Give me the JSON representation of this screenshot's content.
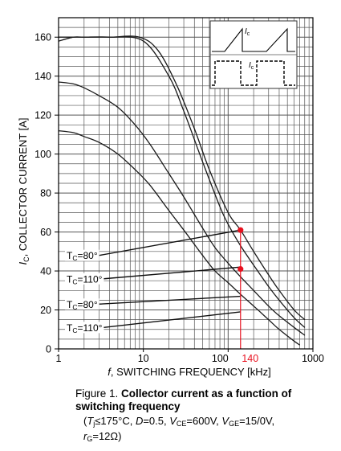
{
  "chart_data": {
    "type": "line",
    "xscale": "log",
    "xlim": [
      1,
      1000
    ],
    "ylim": [
      0,
      170
    ],
    "xticks": [
      1,
      10,
      100,
      1000
    ],
    "xtick_labels": [
      "1",
      "10",
      "100",
      "1000"
    ],
    "yticks": [
      0,
      20,
      40,
      60,
      80,
      100,
      120,
      140,
      160
    ],
    "ytick_labels": [
      "0",
      "20",
      "40",
      "60",
      "80",
      "100",
      "120",
      "140",
      "160"
    ],
    "grid": true,
    "xlabel_var": "f",
    "xlabel": ", SWITCHING FREQUENCY [kHz]",
    "ylabel_var": "I",
    "ylabel_sub": "C",
    "ylabel": ", COLLECTOR CURRENT [A]",
    "series": [
      {
        "x": [
          1,
          1.5,
          2,
          4,
          9,
          15,
          25,
          40,
          60,
          100,
          140,
          200,
          300,
          400,
          600,
          800
        ],
        "y": [
          160,
          160,
          160,
          160,
          160,
          153,
          135,
          113,
          92,
          70,
          61,
          50,
          38,
          30,
          20,
          15
        ]
      },
      {
        "x": [
          1,
          1.5,
          2,
          4,
          10,
          20,
          30,
          50,
          80,
          100,
          140,
          200,
          300,
          400,
          600,
          800
        ],
        "y": [
          158,
          160,
          160,
          160,
          158,
          140,
          122,
          96,
          73,
          64,
          53,
          43,
          32,
          25,
          16,
          11
        ]
      },
      {
        "x": [
          1,
          1.5,
          2,
          3,
          5,
          8,
          12,
          20,
          30,
          50,
          70,
          100,
          140,
          200,
          300,
          400,
          600,
          800
        ],
        "y": [
          137,
          136,
          134,
          130,
          124,
          115,
          105,
          90,
          78,
          62,
          52,
          44,
          37,
          30,
          22,
          17,
          11,
          7
        ]
      },
      {
        "x": [
          1,
          1.5,
          2,
          3,
          5,
          8,
          12,
          20,
          30,
          50,
          70,
          100,
          140,
          200,
          300,
          400,
          600,
          700
        ],
        "y": [
          112,
          111,
          109,
          106,
          100,
          92,
          84,
          71,
          61,
          48,
          40,
          34,
          28,
          22,
          15,
          10,
          4,
          2
        ]
      }
    ],
    "marker_x": 140,
    "marker_x_label": "140",
    "marker_points": [
      61,
      41
    ],
    "annotations": [
      {
        "label_prefix": "T",
        "label_sub": "C",
        "label_suffix": "=80°",
        "label_y": 48,
        "target_x": 140,
        "target_y": 61
      },
      {
        "label_prefix": "T",
        "label_sub": "C",
        "label_suffix": "=110°",
        "label_y": 36,
        "target_x": 140,
        "target_y": 42
      },
      {
        "label_prefix": "T",
        "label_sub": "C",
        "label_suffix": "=80°",
        "label_y": 23,
        "target_x": 140,
        "target_y": 27
      },
      {
        "label_prefix": "T",
        "label_sub": "C",
        "label_suffix": "=110°",
        "label_y": 11,
        "target_x": 140,
        "target_y": 19
      }
    ],
    "inset_labels": [
      "I",
      "I"
    ],
    "inset_label_sub": "c",
    "colors": {
      "curve": "#1a1a1a",
      "grid": "#555555",
      "marker": "#e8101e",
      "annot_line": "#111111"
    }
  },
  "caption": {
    "prefix": "Figure 1. ",
    "title": "Collector current as a function of switching frequency",
    "cond": {
      "open": "(",
      "tj_var": "T",
      "tj_sub": "j",
      "tj_val": "≤175°C, ",
      "d_var": "D",
      "d_val": "=0.5, ",
      "vce_var": "V",
      "vce_sub": "CE",
      "vce_val": "=600V, ",
      "vge_var": "V",
      "vge_sub": "GE",
      "vge_val": "=15/0V,",
      "rg_var": "r",
      "rg_sub": "G",
      "rg_val": "=12Ω)"
    }
  }
}
